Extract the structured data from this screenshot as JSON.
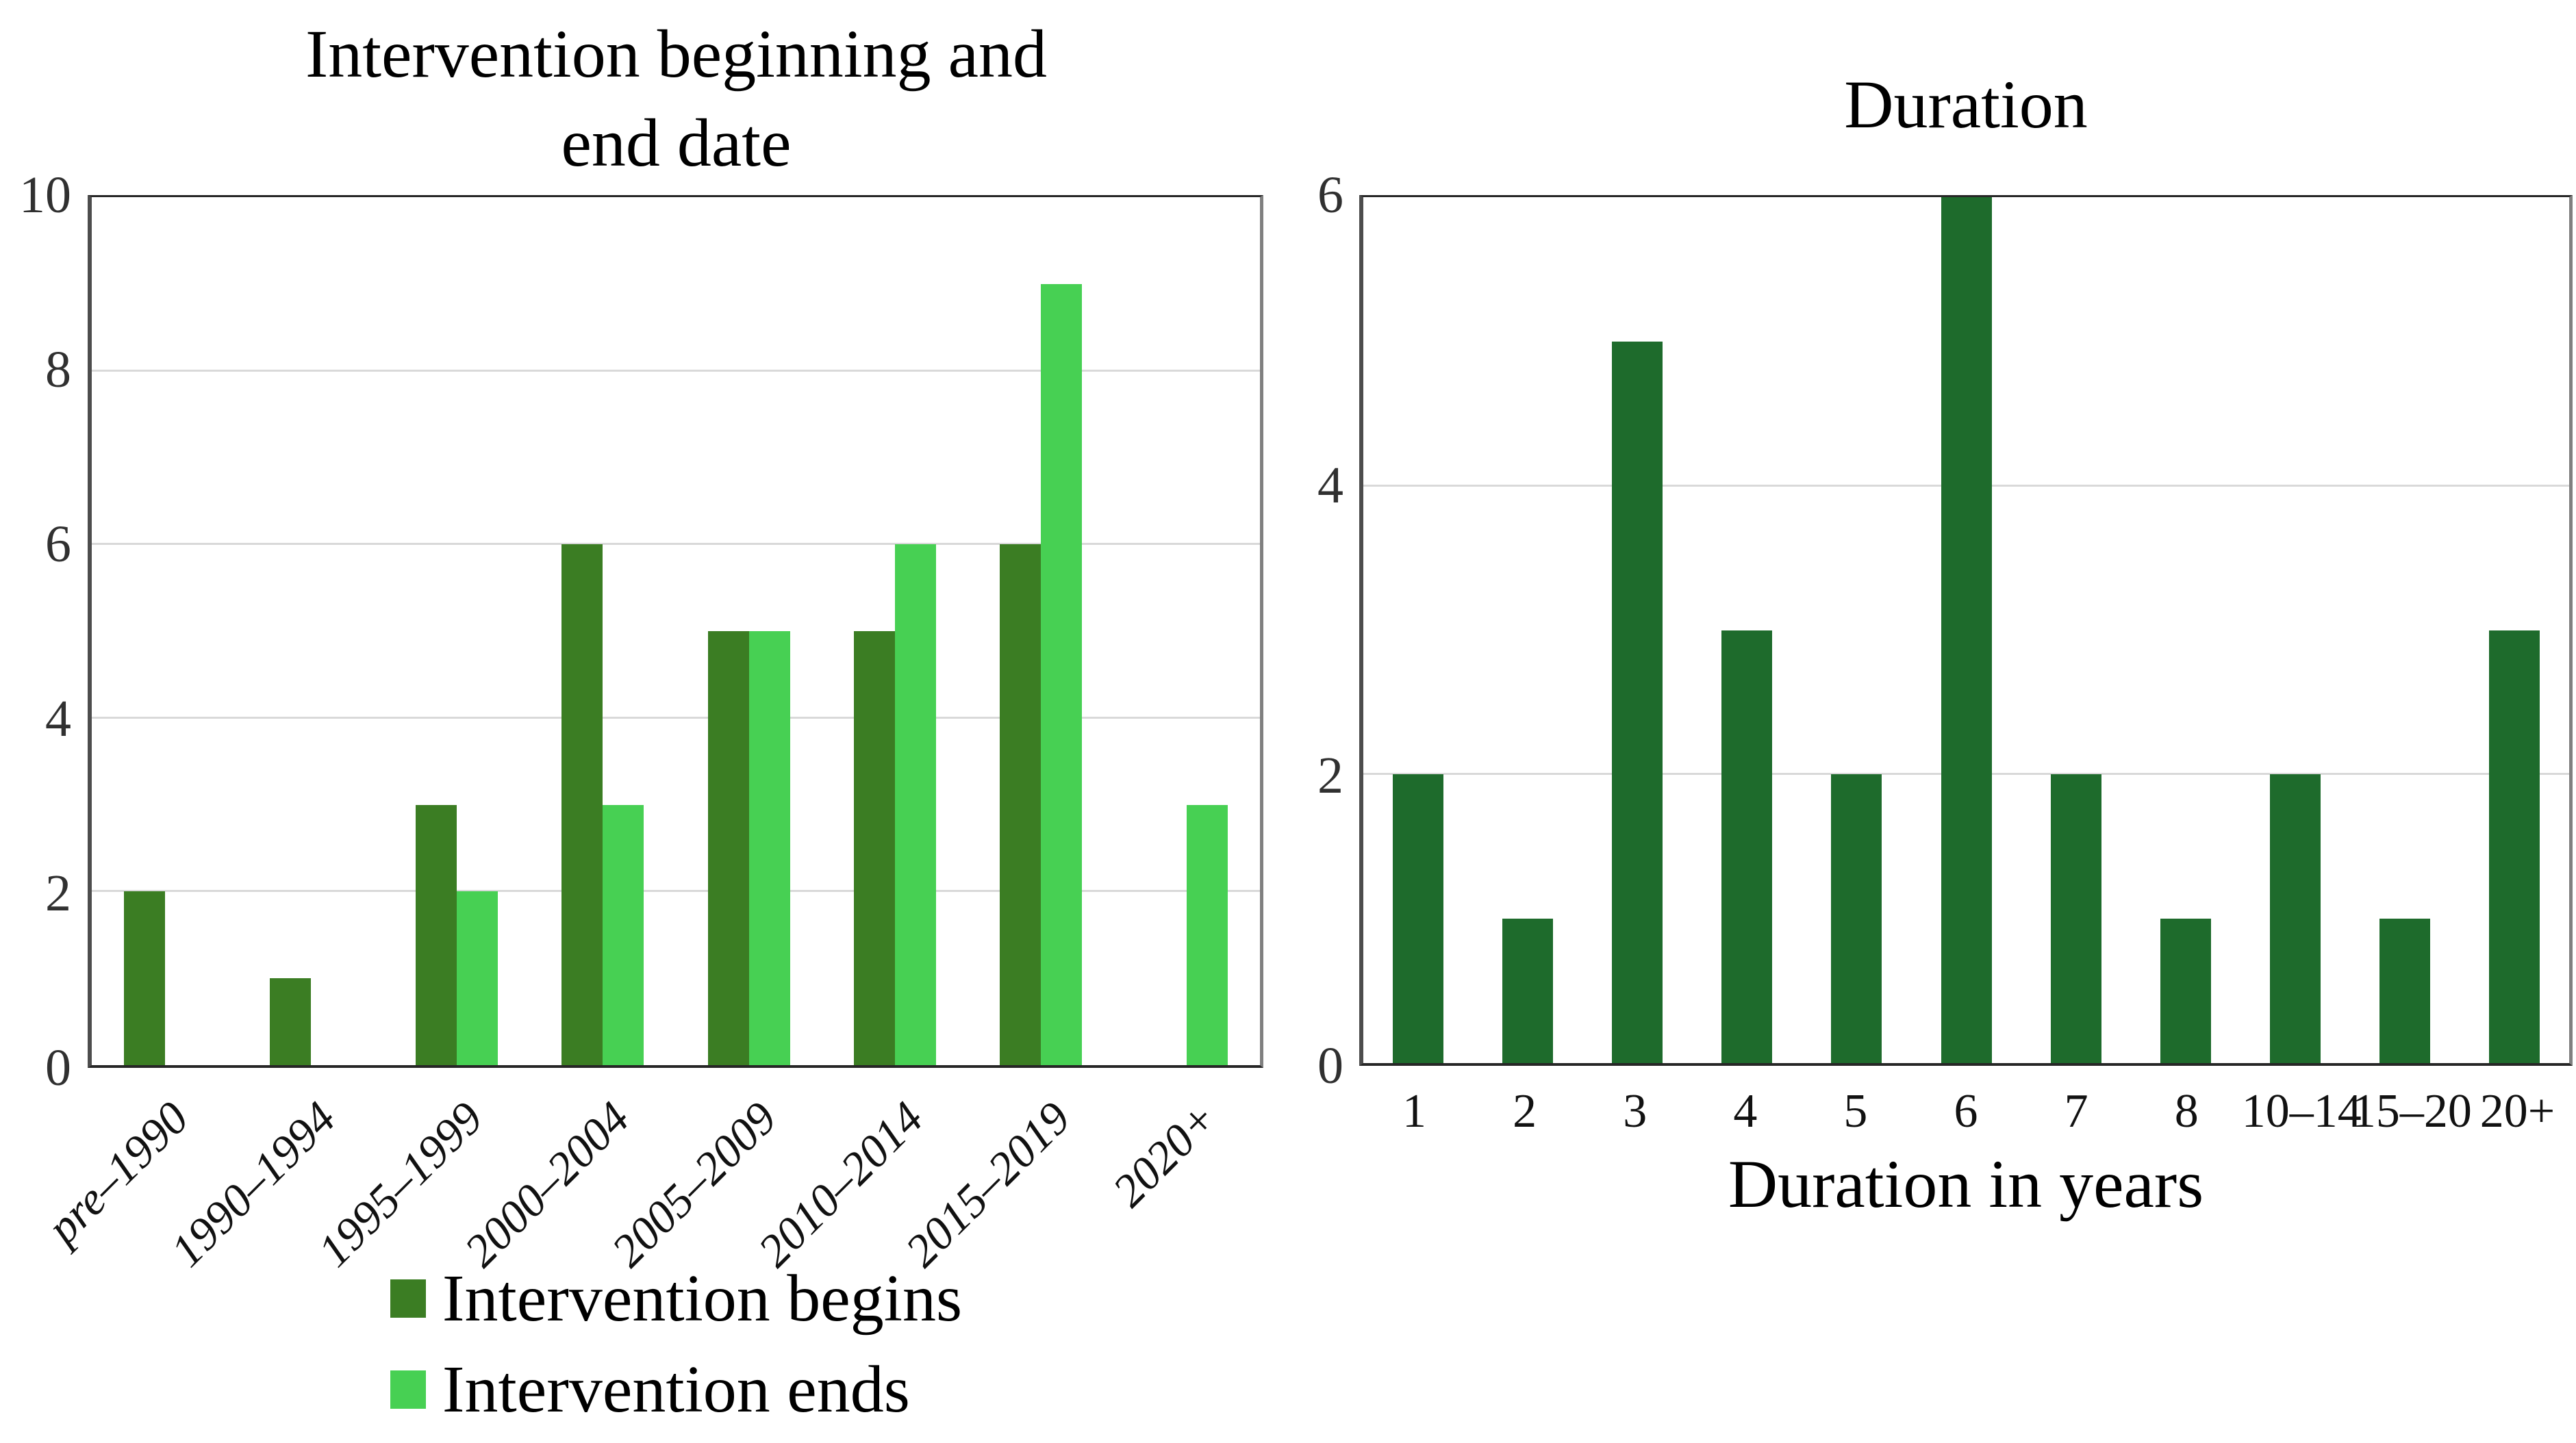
{
  "figure": {
    "background": "#FFFFFF",
    "text_color": "#000000"
  },
  "colors": {
    "intervention_begins_green": "#3B7D23",
    "intervention_ends_green": "#47D053",
    "duration_green": "#1E6B2C",
    "gridline_gray": "#D9D9D9",
    "axis_dark": "#262626"
  },
  "chart_data": [
    {
      "type": "bar",
      "title": "Intervention beginning and end date",
      "title_lines": [
        "Intervention beginning and",
        "end date"
      ],
      "categories": [
        "pre–1990",
        "1990–1994",
        "1995–1999",
        "2000–2004",
        "2005–2009",
        "2010–2014",
        "2015–2019",
        "2020+"
      ],
      "series": [
        {
          "name": "Intervention begins",
          "color": "#3B7D23",
          "values": [
            2,
            1,
            3,
            6,
            5,
            5,
            6,
            0
          ]
        },
        {
          "name": "Intervention ends",
          "color": "#47D053",
          "values": [
            0,
            0,
            2,
            3,
            5,
            6,
            9,
            3
          ]
        }
      ],
      "xlabel": "",
      "ylabel": "",
      "ylim": [
        0,
        10
      ],
      "yticks": [
        0,
        2,
        4,
        6,
        8,
        10
      ],
      "grid": true,
      "legend_position": "bottom"
    },
    {
      "type": "bar",
      "title": "Duration",
      "title_lines": [
        "Duration"
      ],
      "categories": [
        "1",
        "2",
        "3",
        "4",
        "5",
        "6",
        "7",
        "8",
        "10–14",
        "15–20",
        "20+"
      ],
      "series": [
        {
          "name": "Duration",
          "color": "#1E6B2C",
          "values": [
            2,
            1,
            5,
            3,
            2,
            6,
            2,
            1,
            2,
            1,
            3
          ]
        }
      ],
      "xlabel": "Duration in years",
      "ylabel": "",
      "ylim": [
        0,
        6
      ],
      "yticks": [
        0,
        2,
        4,
        6
      ],
      "grid": true,
      "legend_position": "none"
    }
  ]
}
